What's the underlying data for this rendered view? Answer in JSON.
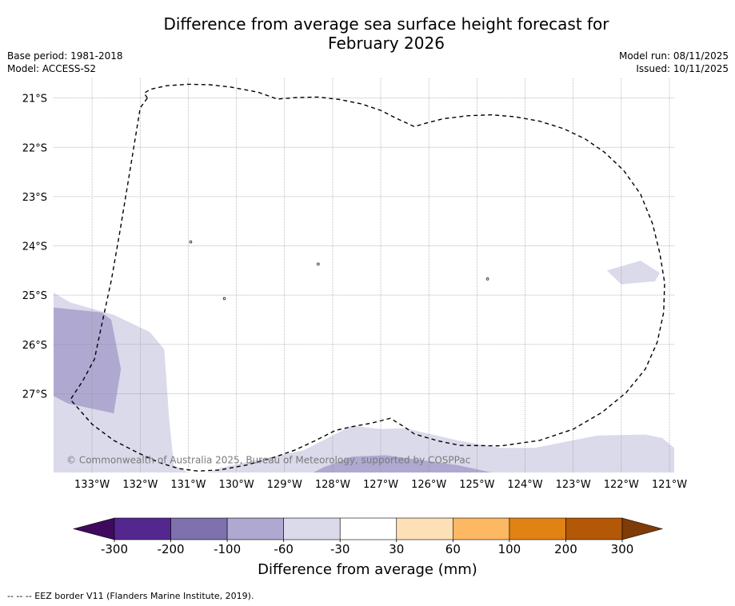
{
  "title": {
    "line1": "Difference from average sea surface height forecast for",
    "line2": "February 2026"
  },
  "meta": {
    "base_period": "Base period: 1981-2018",
    "model": "Model: ACCESS-S2",
    "model_run": "Model run: 08/11/2025",
    "issued": "Issued: 10/11/2025"
  },
  "map": {
    "lon_range": [
      -133.8,
      -120.9
    ],
    "lat_range": [
      -28.6,
      -20.6
    ],
    "lat_labels": [
      "21°S",
      "22°S",
      "23°S",
      "24°S",
      "25°S",
      "26°S",
      "27°S"
    ],
    "lon_labels": [
      "133°W",
      "132°W",
      "131°W",
      "130°W",
      "129°W",
      "128°W",
      "127°W",
      "126°W",
      "125°W",
      "124°W",
      "123°W",
      "122°W",
      "121°W"
    ],
    "copyright": "© Commonwealth of Australia 2025, Bureau of Meteorology, supported by COSPPac",
    "regions": [
      {
        "name": "region-west-light",
        "class": "-60 to -30",
        "coords": [
          [
            -133.8,
            -24.95
          ],
          [
            -133.45,
            -25.15
          ],
          [
            -132.55,
            -25.4
          ],
          [
            -131.8,
            -25.75
          ],
          [
            -131.5,
            -26.1
          ],
          [
            -131.4,
            -27.5
          ],
          [
            -131.3,
            -28.45
          ],
          [
            -131.0,
            -28.6
          ],
          [
            -133.8,
            -28.6
          ]
        ]
      },
      {
        "name": "region-west-dark",
        "class": "-100 to -60",
        "coords": [
          [
            -133.8,
            -25.25
          ],
          [
            -132.8,
            -25.35
          ],
          [
            -132.6,
            -25.5
          ],
          [
            -132.4,
            -26.5
          ],
          [
            -132.55,
            -27.4
          ],
          [
            -133.5,
            -27.2
          ],
          [
            -133.8,
            -27.05
          ]
        ]
      },
      {
        "name": "region-south-light",
        "class": "-60 to -30",
        "coords": [
          [
            -130.6,
            -28.6
          ],
          [
            -130.3,
            -28.5
          ],
          [
            -129.6,
            -28.35
          ],
          [
            -128.6,
            -28.15
          ],
          [
            -128.1,
            -27.9
          ],
          [
            -127.6,
            -27.65
          ],
          [
            -127.0,
            -27.72
          ],
          [
            -126.5,
            -27.7
          ],
          [
            -125.4,
            -27.95
          ],
          [
            -124.5,
            -28.1
          ],
          [
            -123.8,
            -28.1
          ],
          [
            -122.5,
            -27.85
          ],
          [
            -121.5,
            -27.83
          ],
          [
            -121.15,
            -27.9
          ],
          [
            -120.9,
            -28.1
          ],
          [
            -120.9,
            -28.6
          ]
        ]
      },
      {
        "name": "region-south-dark",
        "class": "-100 to -60",
        "coords": [
          [
            -128.4,
            -28.6
          ],
          [
            -128.2,
            -28.5
          ],
          [
            -127.6,
            -28.28
          ],
          [
            -126.9,
            -28.25
          ],
          [
            -126.3,
            -28.33
          ],
          [
            -125.4,
            -28.45
          ],
          [
            -124.7,
            -28.6
          ]
        ]
      },
      {
        "name": "region-east-light",
        "class": "-60 to -30",
        "coords": [
          [
            -122.3,
            -24.5
          ],
          [
            -121.6,
            -24.3
          ],
          [
            -121.2,
            -24.55
          ],
          [
            -121.3,
            -24.72
          ],
          [
            -122.0,
            -24.78
          ]
        ]
      }
    ],
    "eez_border": [
      [
        -131.85,
        -21.0
      ],
      [
        -131.92,
        -20.9
      ],
      [
        -131.78,
        -20.82
      ],
      [
        -131.45,
        -20.75
      ],
      [
        -131.0,
        -20.72
      ],
      [
        -130.55,
        -20.73
      ],
      [
        -130.1,
        -20.78
      ],
      [
        -129.55,
        -20.88
      ],
      [
        -129.15,
        -21.02
      ],
      [
        -128.75,
        -20.99
      ],
      [
        -128.3,
        -20.98
      ],
      [
        -127.85,
        -21.03
      ],
      [
        -127.4,
        -21.12
      ],
      [
        -127.0,
        -21.25
      ],
      [
        -126.7,
        -21.4
      ],
      [
        -126.3,
        -21.58
      ],
      [
        -126.1,
        -21.52
      ],
      [
        -125.7,
        -21.42
      ],
      [
        -125.2,
        -21.36
      ],
      [
        -124.7,
        -21.34
      ],
      [
        -124.2,
        -21.38
      ],
      [
        -123.7,
        -21.47
      ],
      [
        -123.2,
        -21.62
      ],
      [
        -122.75,
        -21.83
      ],
      [
        -122.35,
        -22.1
      ],
      [
        -121.95,
        -22.47
      ],
      [
        -121.6,
        -22.95
      ],
      [
        -121.35,
        -23.55
      ],
      [
        -121.2,
        -24.15
      ],
      [
        -121.1,
        -24.75
      ],
      [
        -121.12,
        -25.35
      ],
      [
        -121.25,
        -25.95
      ],
      [
        -121.5,
        -26.5
      ],
      [
        -121.9,
        -26.98
      ],
      [
        -122.4,
        -27.38
      ],
      [
        -123.0,
        -27.72
      ],
      [
        -123.7,
        -27.95
      ],
      [
        -124.5,
        -28.06
      ],
      [
        -125.35,
        -28.05
      ],
      [
        -125.8,
        -27.96
      ],
      [
        -126.3,
        -27.82
      ],
      [
        -126.5,
        -27.68
      ],
      [
        -126.8,
        -27.5
      ],
      [
        -127.2,
        -27.6
      ],
      [
        -127.65,
        -27.68
      ],
      [
        -127.95,
        -27.75
      ],
      [
        -128.35,
        -27.95
      ],
      [
        -128.8,
        -28.15
      ],
      [
        -129.3,
        -28.32
      ],
      [
        -129.8,
        -28.45
      ],
      [
        -130.35,
        -28.55
      ],
      [
        -130.8,
        -28.57
      ],
      [
        -131.2,
        -28.52
      ],
      [
        -131.6,
        -28.4
      ],
      [
        -132.05,
        -28.2
      ],
      [
        -132.55,
        -27.95
      ],
      [
        -133.0,
        -27.62
      ],
      [
        -133.45,
        -27.12
      ],
      [
        -133.2,
        -26.75
      ],
      [
        -132.95,
        -26.3
      ],
      [
        -132.8,
        -25.6
      ],
      [
        -132.6,
        -24.7
      ],
      [
        -132.42,
        -23.7
      ],
      [
        -132.25,
        -22.7
      ],
      [
        -132.1,
        -21.8
      ],
      [
        -132.0,
        -21.2
      ],
      [
        -131.85,
        -21.0
      ]
    ],
    "islands": [
      {
        "name": "island-marker",
        "lon": -128.3,
        "lat": -24.37
      },
      {
        "name": "island-marker",
        "lon": -130.95,
        "lat": -23.92
      },
      {
        "name": "island-marker",
        "lon": -130.25,
        "lat": -25.07
      },
      {
        "name": "island-marker",
        "lon": -124.78,
        "lat": -24.67
      }
    ]
  },
  "legend": {
    "colors": [
      "#3f0a5d",
      "#54278f",
      "#7e71ad",
      "#afa9d1",
      "#dadaeb",
      "#ffffff",
      "#fee0b6",
      "#fdb863",
      "#e08214",
      "#b35806",
      "#7f3b08"
    ],
    "tick_labels": [
      "-300",
      "-200",
      "-100",
      "-60",
      "-30",
      "30",
      "60",
      "100",
      "200",
      "300"
    ],
    "label": "Difference from average (mm)"
  },
  "region_colors": {
    "-100 to -60": "#afa9d1",
    "-60 to -30": "#dadaeb"
  },
  "footnote": "--  --  -- EEZ border V11 (Flanders Marine Institute, 2019)."
}
